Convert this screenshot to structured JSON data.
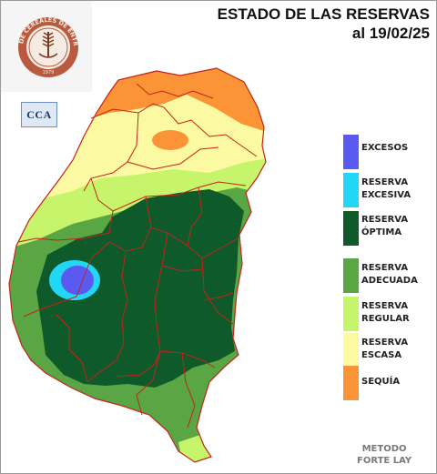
{
  "title": {
    "line1": "ESTADO DE LAS RESERVAS",
    "line2": "al 19/02/25"
  },
  "logos": {
    "bolsa_seal": {
      "icon": "bolsa-cereales-seal-logo",
      "ring_text": "BOLSA DE CEREALES DE ENTRE RIOS",
      "year": "1979"
    },
    "cca": {
      "text": "CCA",
      "icon": "cca-logo"
    }
  },
  "legend": [
    {
      "line1": "EXCESOS",
      "line2": "",
      "color": "#5a5af0"
    },
    {
      "line1": "RESERVA",
      "line2": "EXCESIVA",
      "color": "#22d6f5"
    },
    {
      "line1": "RESERVA",
      "line2": "ÓPTIMA",
      "color": "#0f5a2a"
    },
    {
      "line1": "RESERVA",
      "line2": "ADECUADA",
      "color": "#5aa544"
    },
    {
      "line1": "RESERVA",
      "line2": "REGULAR",
      "color": "#c6f46a"
    },
    {
      "line1": "RESERVA",
      "line2": "ESCASA",
      "color": "#fbf9a2"
    },
    {
      "line1": "SEQUÍA",
      "line2": "",
      "color": "#fb9437"
    }
  ],
  "method": {
    "line1": "METODO",
    "line2": "FORTE LAY"
  },
  "map_colors": {
    "border": "#c62218",
    "excesos": "#5a5af0",
    "excesiva": "#22d6f5",
    "optima": "#0f5a2a",
    "adecuada": "#5aa544",
    "regular": "#c6f46a",
    "escasa": "#fbf9a2",
    "sequia": "#fb9437"
  }
}
